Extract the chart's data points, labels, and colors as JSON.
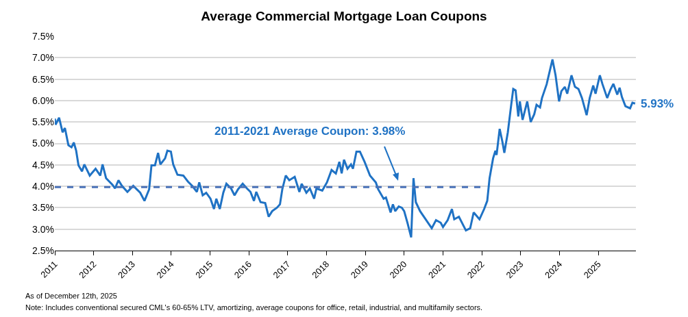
{
  "chart_data": {
    "type": "line",
    "title": "Average Commercial Mortgage Loan Coupons",
    "x": [
      2011.0,
      2011.02,
      2011.11,
      2011.2,
      2011.26,
      2011.35,
      2011.43,
      2011.49,
      2011.55,
      2011.61,
      2011.7,
      2011.76,
      2011.9,
      2012.05,
      2012.17,
      2012.23,
      2012.32,
      2012.49,
      2012.55,
      2012.64,
      2012.73,
      2012.87,
      2013.02,
      2013.2,
      2013.31,
      2013.43,
      2013.49,
      2013.58,
      2013.66,
      2013.72,
      2013.84,
      2013.9,
      2013.99,
      2014.05,
      2014.16,
      2014.31,
      2014.43,
      2014.54,
      2014.66,
      2014.72,
      2014.81,
      2014.9,
      2015.01,
      2015.1,
      2015.16,
      2015.25,
      2015.34,
      2015.42,
      2015.54,
      2015.63,
      2015.72,
      2015.84,
      2015.95,
      2016.04,
      2016.13,
      2016.19,
      2016.3,
      2016.42,
      2016.51,
      2016.6,
      2016.72,
      2016.8,
      2016.86,
      2016.95,
      2017.04,
      2017.18,
      2017.3,
      2017.36,
      2017.48,
      2017.57,
      2017.68,
      2017.74,
      2017.89,
      2018.01,
      2018.13,
      2018.24,
      2018.33,
      2018.39,
      2018.45,
      2018.54,
      2018.63,
      2018.68,
      2018.77,
      2018.86,
      2018.98,
      2019.12,
      2019.27,
      2019.33,
      2019.47,
      2019.53,
      2019.65,
      2019.71,
      2019.77,
      2019.86,
      2019.94,
      2020.0,
      2020.09,
      2020.18,
      2020.24,
      2020.3,
      2020.41,
      2020.53,
      2020.71,
      2020.82,
      2020.94,
      2021.0,
      2021.12,
      2021.23,
      2021.29,
      2021.41,
      2021.59,
      2021.7,
      2021.79,
      2021.94,
      2022.06,
      2022.14,
      2022.2,
      2022.29,
      2022.35,
      2022.38,
      2022.46,
      2022.53,
      2022.58,
      2022.67,
      2022.76,
      2022.81,
      2022.87,
      2022.94,
      2022.98,
      2023.05,
      2023.17,
      2023.26,
      2023.35,
      2023.41,
      2023.5,
      2023.55,
      2023.61,
      2023.67,
      2023.82,
      2023.9,
      2023.99,
      2024.05,
      2024.14,
      2024.2,
      2024.31,
      2024.4,
      2024.49,
      2024.58,
      2024.7,
      2024.78,
      2024.87,
      2024.93,
      2025.04,
      2025.11,
      2025.23,
      2025.32,
      2025.39,
      2025.49,
      2025.55,
      2025.61,
      2025.7,
      2025.82,
      2025.88,
      2025.95
    ],
    "series": [
      {
        "color": "#1f72c4",
        "values": [
          5.58,
          5.44,
          5.6,
          5.26,
          5.36,
          4.96,
          4.91,
          5.02,
          4.83,
          4.49,
          4.35,
          4.51,
          4.25,
          4.41,
          4.25,
          4.51,
          4.19,
          4.03,
          3.95,
          4.14,
          4.01,
          3.87,
          4.01,
          3.85,
          3.66,
          3.93,
          4.49,
          4.49,
          4.78,
          4.51,
          4.65,
          4.83,
          4.81,
          4.51,
          4.27,
          4.25,
          4.11,
          4.01,
          3.87,
          4.09,
          3.79,
          3.85,
          3.71,
          3.47,
          3.71,
          3.47,
          3.85,
          4.06,
          3.95,
          3.79,
          3.93,
          4.06,
          3.95,
          3.87,
          3.66,
          3.87,
          3.63,
          3.61,
          3.29,
          3.42,
          3.5,
          3.58,
          3.93,
          4.25,
          4.14,
          4.22,
          3.87,
          4.06,
          3.85,
          3.95,
          3.71,
          3.95,
          3.9,
          4.09,
          4.38,
          4.3,
          4.57,
          4.3,
          4.62,
          4.41,
          4.51,
          4.41,
          4.81,
          4.81,
          4.57,
          4.25,
          4.09,
          3.93,
          3.71,
          3.74,
          3.39,
          3.58,
          3.42,
          3.53,
          3.5,
          3.42,
          3.13,
          2.81,
          4.19,
          3.63,
          3.42,
          3.26,
          3.02,
          3.21,
          3.15,
          3.05,
          3.21,
          3.47,
          3.23,
          3.29,
          2.97,
          3.02,
          3.39,
          3.23,
          3.47,
          3.66,
          4.19,
          4.65,
          4.83,
          4.73,
          5.34,
          5.04,
          4.78,
          5.26,
          5.92,
          6.27,
          6.24,
          5.63,
          5.98,
          5.55,
          5.98,
          5.5,
          5.68,
          5.9,
          5.84,
          6.06,
          6.22,
          6.38,
          6.96,
          6.59,
          5.98,
          6.22,
          6.32,
          6.16,
          6.59,
          6.32,
          6.27,
          6.06,
          5.66,
          6.06,
          6.35,
          6.16,
          6.59,
          6.38,
          6.06,
          6.27,
          6.39,
          6.14,
          6.3,
          6.08,
          5.87,
          5.82,
          5.95,
          5.93
        ]
      },
      {
        "type": "line",
        "line_style": "dashed",
        "color": "#4a72b8",
        "x": [
          2011,
          2022
        ],
        "values": [
          3.98,
          3.98
        ]
      }
    ],
    "xlim": [
      2011,
      2025.97
    ],
    "xticks": [
      2011,
      2012,
      2013,
      2014,
      2015,
      2016,
      2017,
      2018,
      2019,
      2020,
      2021,
      2022,
      2023,
      2024,
      2025
    ],
    "ylim": [
      2.5,
      7.5
    ],
    "yticks": [
      {
        "value": 2.5,
        "label": "2.5%"
      },
      {
        "value": 3,
        "label": "3.0%"
      },
      {
        "value": 3.5,
        "label": "3.5%"
      },
      {
        "value": 4,
        "label": "4.0%"
      },
      {
        "value": 4.5,
        "label": "4.5%"
      },
      {
        "value": 5,
        "label": "5.0%"
      },
      {
        "value": 5.5,
        "label": "5.5%"
      },
      {
        "value": 6,
        "label": "6.0%"
      },
      {
        "value": 6.5,
        "label": "6.5%"
      },
      {
        "value": 7,
        "label": "7.0%"
      },
      {
        "value": 7.5,
        "label": "7.5%"
      }
    ],
    "grid": "y",
    "marker": "none",
    "line_style": "solid",
    "annotations": [
      "2011-2021 Average Coupon: 3.98%",
      {
        "text": "5.93%",
        "x": 2025.95,
        "y": 5.93
      },
      "As of December 12th, 2025",
      "Note: Includes conventional secured CML's 60-65% LTV, amortizing, average coupons for office, retail, industrial, and multifamily sectors."
    ]
  }
}
